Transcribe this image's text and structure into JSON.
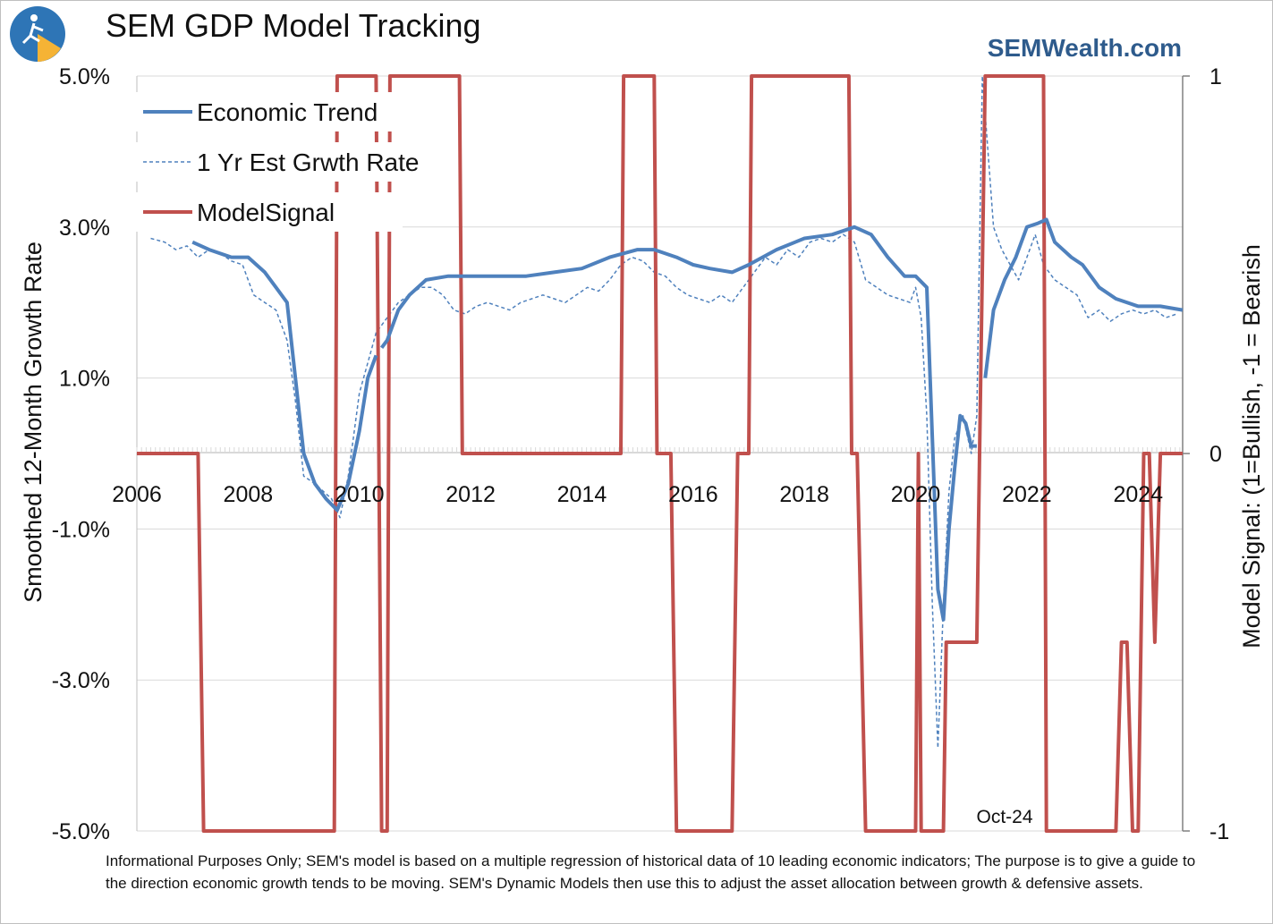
{
  "chart_data": {
    "type": "line",
    "title": "SEM GDP Model Tracking",
    "brand": "SEMWealth.com",
    "ylabel": "Smoothed 12-Month Growth Rate",
    "y2label": "Model Signal: (1=Bullish, -1 = Bearish",
    "ylim": [
      -5.0,
      5.0
    ],
    "y2lim": [
      -1,
      1
    ],
    "xlim": [
      2006.0,
      2024.8
    ],
    "x_ticks": [
      "2006",
      "2008",
      "2010",
      "2012",
      "2014",
      "2016",
      "2018",
      "2020",
      "2022",
      "2024"
    ],
    "y_ticks": [
      "5.0%",
      "3.0%",
      "1.0%",
      "-1.0%",
      "-3.0%",
      "-5.0%"
    ],
    "y2_ticks": [
      "1",
      "0",
      "-1"
    ],
    "annotation": "Oct-24",
    "footnote": "Informational Purposes Only; SEM's model is based on a multiple regression of historical data of 10 leading economic indicators; The purpose is to give a guide to the direction economic growth tends to be moving. SEM's Dynamic Models then use this to adjust the asset allocation between growth & defensive assets.",
    "series": [
      {
        "name": "Economic Trend",
        "axis": "left",
        "color": "#4f81bd",
        "x": [
          2007.0,
          2007.3,
          2007.7,
          2008.0,
          2008.3,
          2008.5,
          2008.7,
          2008.85,
          2009.0,
          2009.2,
          2009.4,
          2009.6,
          2009.8,
          2010.0,
          2010.15,
          2010.3,
          2010.4,
          2010.5,
          2010.7,
          2010.9,
          2011.2,
          2011.6,
          2012.0,
          2012.5,
          2013.0,
          2013.5,
          2014.0,
          2014.5,
          2015.0,
          2015.3,
          2015.7,
          2016.0,
          2016.3,
          2016.7,
          2017.0,
          2017.5,
          2018.0,
          2018.5,
          2018.9,
          2019.2,
          2019.5,
          2019.8,
          2020.0,
          2020.2,
          2020.3,
          2020.4,
          2020.5,
          2020.6,
          2020.7,
          2020.8,
          2020.9,
          2021.0,
          2021.1,
          2021.25,
          2021.3,
          2021.4,
          2021.6,
          2021.8,
          2022.0,
          2022.2,
          2022.35,
          2022.5,
          2022.8,
          2023.0,
          2023.3,
          2023.6,
          2024.0,
          2024.4,
          2024.8
        ],
        "values": [
          2.8,
          2.7,
          2.6,
          2.6,
          2.4,
          2.2,
          2.0,
          1.0,
          0.0,
          -0.4,
          -0.6,
          -0.75,
          -0.4,
          0.3,
          1.0,
          1.3,
          1.4,
          1.5,
          1.9,
          2.1,
          2.3,
          2.35,
          2.35,
          2.35,
          2.35,
          2.4,
          2.45,
          2.6,
          2.7,
          2.7,
          2.6,
          2.5,
          2.45,
          2.4,
          2.5,
          2.7,
          2.85,
          2.9,
          3.0,
          2.9,
          2.6,
          2.35,
          2.35,
          2.2,
          0.2,
          -1.8,
          -2.2,
          -1.0,
          -0.2,
          0.5,
          0.4,
          0.1,
          0.1,
          1.0,
          1.3,
          1.9,
          2.3,
          2.6,
          3.0,
          3.05,
          3.1,
          2.8,
          2.6,
          2.5,
          2.2,
          2.05,
          1.95,
          1.95,
          1.9
        ],
        "segments": [
          [
            2007.0,
            2010.3
          ],
          [
            2010.4,
            2021.1
          ],
          [
            2021.25,
            2024.8
          ]
        ]
      },
      {
        "name": "1 Yr Est Grwth Rate",
        "axis": "left",
        "color": "#4f81bd",
        "dashed": true,
        "x": [
          2006.25,
          2006.5,
          2006.7,
          2006.9,
          2007.1,
          2007.3,
          2007.5,
          2007.7,
          2007.9,
          2008.1,
          2008.3,
          2008.5,
          2008.7,
          2008.85,
          2009.0,
          2009.2,
          2009.5,
          2009.65,
          2009.8,
          2010.0,
          2010.15,
          2010.3,
          2010.5,
          2010.7,
          2010.9,
          2011.1,
          2011.3,
          2011.5,
          2011.7,
          2011.9,
          2012.1,
          2012.3,
          2012.5,
          2012.7,
          2012.9,
          2013.1,
          2013.3,
          2013.5,
          2013.7,
          2013.9,
          2014.1,
          2014.3,
          2014.5,
          2014.7,
          2014.9,
          2015.1,
          2015.3,
          2015.5,
          2015.7,
          2015.9,
          2016.1,
          2016.3,
          2016.5,
          2016.7,
          2016.9,
          2017.1,
          2017.3,
          2017.5,
          2017.7,
          2017.9,
          2018.1,
          2018.3,
          2018.5,
          2018.7,
          2018.9,
          2019.1,
          2019.3,
          2019.5,
          2019.7,
          2019.9,
          2020.0,
          2020.1,
          2020.2,
          2020.3,
          2020.4,
          2020.5,
          2020.6,
          2020.7,
          2020.85,
          2021.0,
          2021.1,
          2021.2,
          2021.3,
          2021.4,
          2021.55,
          2021.7,
          2021.85,
          2022.0,
          2022.15,
          2022.3,
          2022.5,
          2022.7,
          2022.9,
          2023.1,
          2023.3,
          2023.5,
          2023.7,
          2023.9,
          2024.1,
          2024.3,
          2024.5,
          2024.7
        ],
        "values": [
          2.85,
          2.8,
          2.7,
          2.75,
          2.6,
          2.7,
          2.65,
          2.55,
          2.5,
          2.1,
          2.0,
          1.9,
          1.5,
          0.7,
          -0.3,
          -0.4,
          -0.6,
          -0.85,
          -0.3,
          0.8,
          1.2,
          1.6,
          1.8,
          2.0,
          2.1,
          2.2,
          2.2,
          2.1,
          1.9,
          1.85,
          1.95,
          2.0,
          1.95,
          1.9,
          2.0,
          2.05,
          2.1,
          2.05,
          2.0,
          2.1,
          2.2,
          2.15,
          2.3,
          2.5,
          2.6,
          2.55,
          2.4,
          2.35,
          2.2,
          2.1,
          2.05,
          2.0,
          2.1,
          2.0,
          2.2,
          2.4,
          2.6,
          2.5,
          2.7,
          2.6,
          2.8,
          2.85,
          2.8,
          2.9,
          2.8,
          2.3,
          2.2,
          2.1,
          2.05,
          2.0,
          2.2,
          1.8,
          0.5,
          -2.0,
          -3.9,
          -2.0,
          -0.5,
          0.2,
          0.5,
          0.0,
          0.5,
          5.0,
          4.0,
          3.0,
          2.7,
          2.5,
          2.3,
          2.6,
          2.9,
          2.5,
          2.3,
          2.2,
          2.1,
          1.8,
          1.9,
          1.75,
          1.85,
          1.9,
          1.85,
          1.9,
          1.8,
          1.85
        ],
        "segments": [
          [
            2006.25,
            2024.7
          ]
        ]
      },
      {
        "name": "ModelSignal",
        "axis": "right",
        "color": "#c0504d",
        "x": [
          2006.0,
          2007.1,
          2007.2,
          2009.55,
          2009.6,
          2009.85,
          2009.9,
          2010.3,
          2010.4,
          2010.5,
          2010.55,
          2010.65,
          2010.7,
          2011.8,
          2011.85,
          2014.7,
          2014.75,
          2015.3,
          2015.35,
          2015.6,
          2015.7,
          2016.7,
          2016.8,
          2017.0,
          2017.05,
          2018.8,
          2018.85,
          2018.95,
          2019.1,
          2020.0,
          2020.05,
          2020.1,
          2020.15,
          2020.5,
          2020.55,
          2021.1,
          2021.15,
          2021.25,
          2021.3,
          2022.3,
          2022.35,
          2023.6,
          2023.7,
          2023.8,
          2023.9,
          2024.0,
          2024.1,
          2024.2,
          2024.3,
          2024.4,
          2024.5,
          2024.6,
          2024.8
        ],
        "values": [
          0,
          0,
          -1,
          -1,
          1,
          1,
          1,
          1,
          -1,
          -1,
          1,
          1,
          1,
          1,
          0,
          0,
          1,
          1,
          0,
          0,
          -1,
          -1,
          0,
          0,
          1,
          1,
          0,
          0,
          -1,
          -1,
          0,
          -1,
          -1,
          -1,
          -0.5,
          -0.5,
          0,
          1,
          1,
          1,
          -1,
          -1,
          -0.5,
          -0.5,
          -1,
          -1,
          0,
          0,
          -0.5,
          0,
          0,
          0,
          0
        ],
        "segments": [
          [
            2006.0,
            2024.8
          ]
        ]
      }
    ]
  }
}
